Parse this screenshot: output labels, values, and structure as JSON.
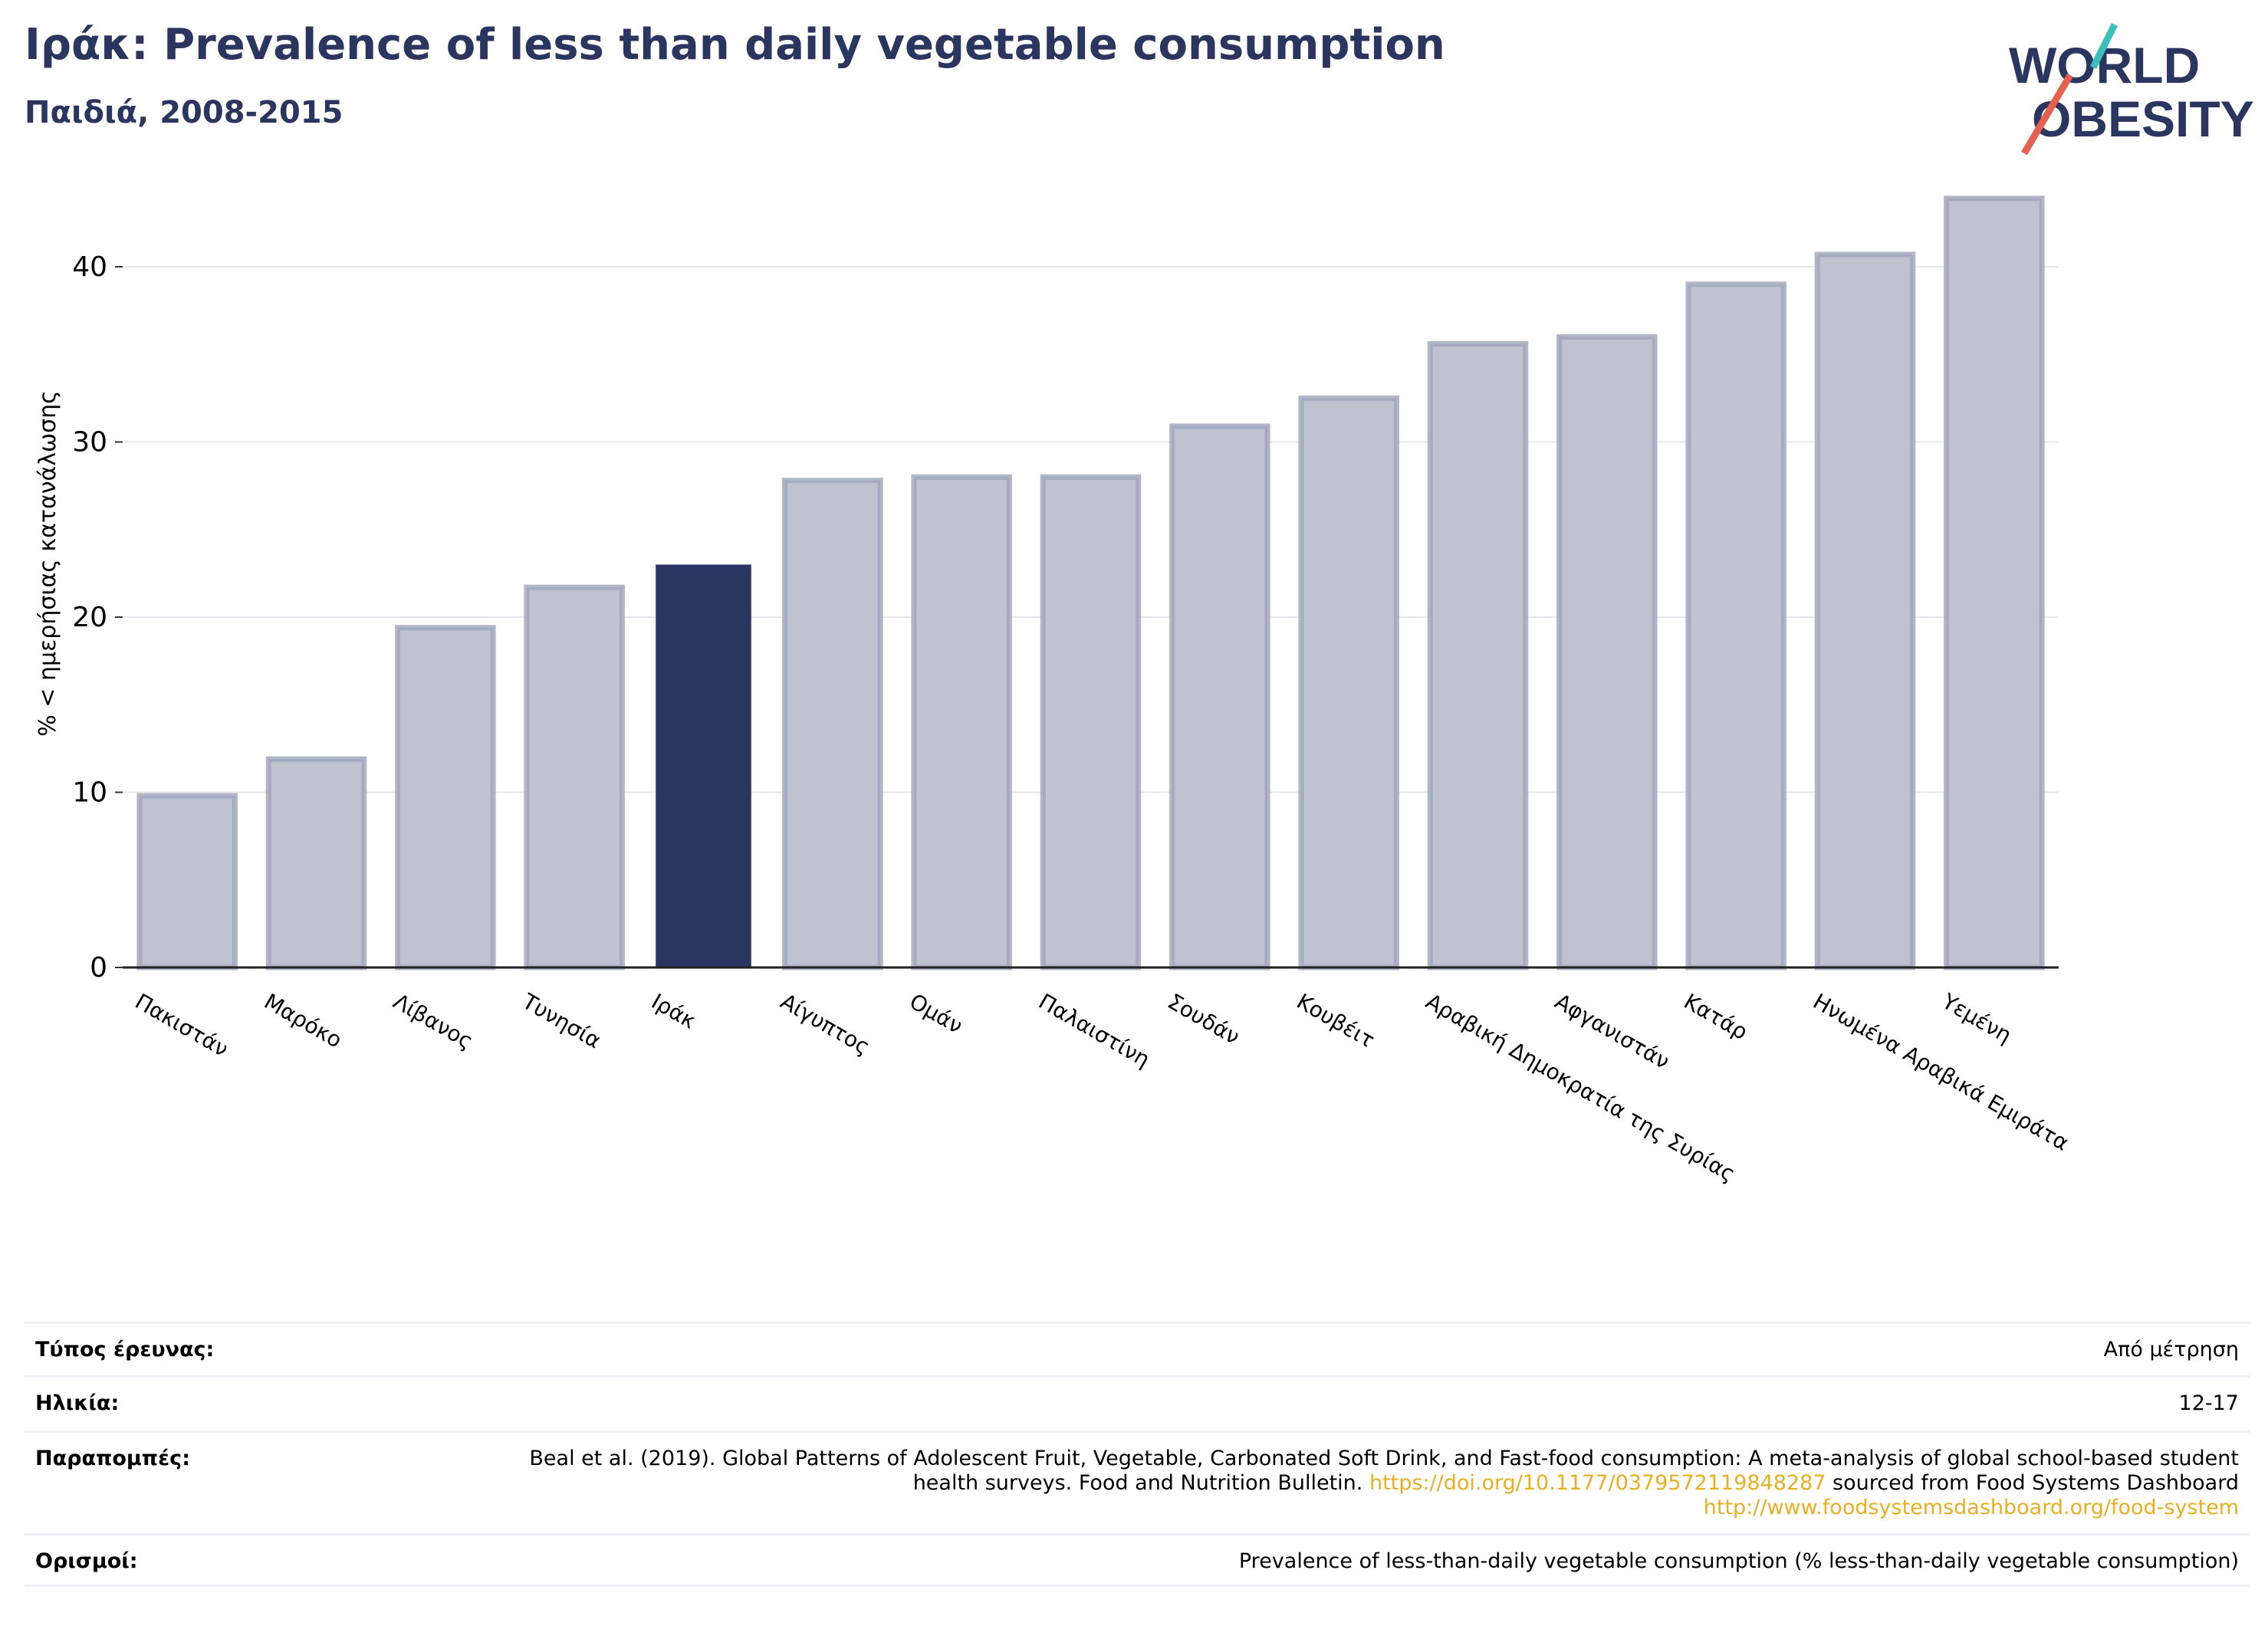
{
  "header": {
    "title": "Ιράκ: Prevalence of less than daily vegetable consumption",
    "subtitle": "Παιδιά, 2008-2015"
  },
  "logo": {
    "line1": "WORLD",
    "line2": "OBESITY",
    "brand_color": "#2b3660",
    "accent_teal": "#3bbfb9",
    "accent_red": "#e5604f"
  },
  "chart_data": {
    "type": "bar",
    "categories": [
      "Πακιστάν",
      "Μαρόκο",
      "Λίβανος",
      "Τυνησία",
      "Ιράκ",
      "Αίγυπτος",
      "Ομάν",
      "Παλαιστίνη",
      "Σουδάν",
      "Κουβέιτ",
      "Αραβική Δημοκρατία της Συρίας",
      "Αφγανιστάν",
      "Κατάρ",
      "Ηνωμένα Αραβικά Εμιράτα",
      "Υεμένη"
    ],
    "values": [
      9.8,
      11.9,
      19.4,
      21.7,
      23.0,
      27.8,
      28.0,
      28.0,
      30.9,
      32.5,
      35.6,
      36.0,
      39.0,
      40.7,
      43.9
    ],
    "highlight": "Ιράκ",
    "ylabel": "% < ημερήσιας κατανάλωσης",
    "yticks": [
      0,
      10,
      20,
      30,
      40
    ],
    "ylim": [
      0,
      45
    ],
    "grid": true,
    "colors": {
      "bar": "#bfc2cf",
      "bar_edge": "#9ea4ba",
      "highlight": "#2b3660"
    }
  },
  "info_table": [
    {
      "key": "Τύπος έρευνας:",
      "value": "Από μέτρηση"
    },
    {
      "key": "Ηλικία:",
      "value": "12-17"
    },
    {
      "key": "Παραπομπές:",
      "value_parts": [
        "Beal et al. (2019). Global Patterns of Adolescent Fruit, Vegetable, Carbonated Soft Drink, and Fast-food consumption: A meta-analysis of global school-based student health surveys. Food and Nutrition Bulletin. ",
        "https://doi.org/10.1177/0379572119848287",
        " sourced from Food Systems Dashboard ",
        "http://www.foodsystemsdashboard.org/food-system"
      ]
    },
    {
      "key": "Ορισμοί:",
      "value": "Prevalence of less-than-daily vegetable consumption (% less-than-daily vegetable consumption)"
    }
  ]
}
